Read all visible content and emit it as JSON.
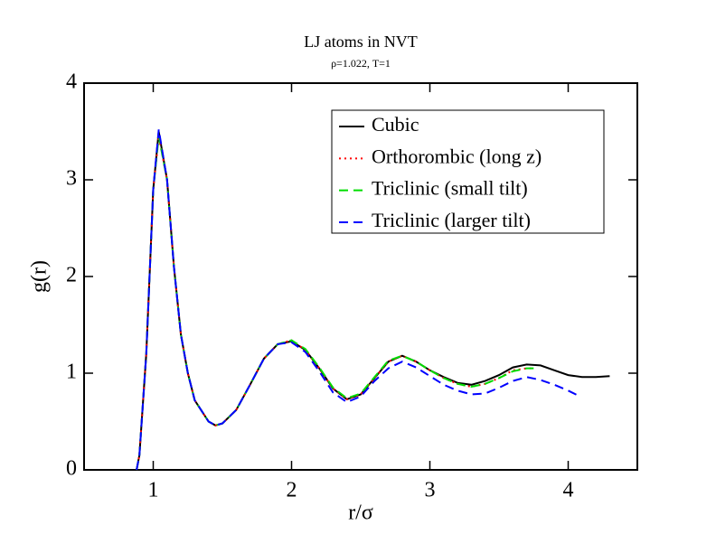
{
  "chart_data": {
    "type": "line",
    "title": "LJ atoms in NVT",
    "subtitle": "ρ=1.022, T=1",
    "xlabel": "r/σ",
    "ylabel": "g(r)",
    "xlim": [
      0.5,
      4.5
    ],
    "ylim": [
      0,
      4
    ],
    "xticks": [
      1,
      2,
      3,
      4
    ],
    "yticks": [
      0,
      1,
      2,
      3,
      4
    ],
    "grid": false,
    "legend": "upper right",
    "series": [
      {
        "name": "Cubic",
        "color": "#000000",
        "linestyle": "solid",
        "x": [
          0.88,
          0.9,
          0.95,
          1.0,
          1.04,
          1.1,
          1.15,
          1.2,
          1.25,
          1.3,
          1.4,
          1.45,
          1.5,
          1.6,
          1.7,
          1.8,
          1.9,
          2.0,
          2.1,
          2.2,
          2.3,
          2.4,
          2.5,
          2.6,
          2.7,
          2.8,
          2.9,
          3.0,
          3.1,
          3.2,
          3.3,
          3.4,
          3.5,
          3.6,
          3.7,
          3.8,
          3.9,
          4.0,
          4.1,
          4.2,
          4.3
        ],
        "values": [
          0,
          0.15,
          1.2,
          2.9,
          3.5,
          3.0,
          2.1,
          1.4,
          1.0,
          0.72,
          0.5,
          0.46,
          0.48,
          0.62,
          0.88,
          1.15,
          1.3,
          1.33,
          1.24,
          1.05,
          0.84,
          0.73,
          0.78,
          0.95,
          1.12,
          1.18,
          1.12,
          1.03,
          0.96,
          0.9,
          0.88,
          0.92,
          0.98,
          1.06,
          1.09,
          1.08,
          1.03,
          0.98,
          0.96,
          0.96,
          0.97
        ]
      },
      {
        "name": "Orthorombic (long z)",
        "color": "#ff0000",
        "linestyle": "dotted",
        "x": [
          0.88,
          0.9,
          0.95,
          1.0,
          1.04,
          1.1,
          1.15,
          1.2,
          1.25,
          1.3,
          1.4,
          1.45,
          1.5,
          1.6,
          1.7,
          1.8,
          1.9,
          2.0,
          2.1,
          2.2,
          2.3,
          2.4,
          2.5,
          2.6,
          2.7,
          2.8,
          2.9,
          3.0,
          3.1,
          3.2,
          3.3,
          3.4,
          3.5,
          3.6,
          3.7,
          3.75
        ],
        "values": [
          0,
          0.15,
          1.2,
          2.9,
          3.45,
          3.0,
          2.1,
          1.4,
          1.0,
          0.72,
          0.5,
          0.46,
          0.48,
          0.62,
          0.88,
          1.15,
          1.3,
          1.34,
          1.24,
          1.05,
          0.84,
          0.73,
          0.78,
          0.95,
          1.12,
          1.18,
          1.12,
          1.03,
          0.95,
          0.89,
          0.86,
          0.89,
          0.95,
          1.03,
          1.05,
          1.05
        ]
      },
      {
        "name": "Triclinic (small tilt)",
        "color": "#00dd00",
        "linestyle": "dashed",
        "x": [
          0.88,
          0.9,
          0.95,
          1.0,
          1.04,
          1.1,
          1.15,
          1.2,
          1.25,
          1.3,
          1.4,
          1.45,
          1.5,
          1.6,
          1.7,
          1.8,
          1.9,
          2.0,
          2.1,
          2.2,
          2.3,
          2.4,
          2.5,
          2.6,
          2.7,
          2.8,
          2.9,
          3.0,
          3.1,
          3.2,
          3.3,
          3.4,
          3.5,
          3.6,
          3.7,
          3.75
        ],
        "values": [
          0,
          0.15,
          1.2,
          2.9,
          3.45,
          3.0,
          2.1,
          1.4,
          1.0,
          0.72,
          0.5,
          0.46,
          0.48,
          0.62,
          0.88,
          1.15,
          1.3,
          1.34,
          1.25,
          1.06,
          0.85,
          0.74,
          0.79,
          0.96,
          1.13,
          1.18,
          1.12,
          1.03,
          0.95,
          0.89,
          0.86,
          0.89,
          0.95,
          1.02,
          1.05,
          1.05
        ]
      },
      {
        "name": "Triclinic (larger tilt)",
        "color": "#0000ff",
        "linestyle": "dashed",
        "x": [
          0.88,
          0.9,
          0.95,
          1.0,
          1.04,
          1.1,
          1.15,
          1.2,
          1.25,
          1.3,
          1.4,
          1.45,
          1.5,
          1.6,
          1.7,
          1.8,
          1.9,
          2.0,
          2.1,
          2.2,
          2.3,
          2.4,
          2.5,
          2.6,
          2.7,
          2.8,
          2.9,
          3.0,
          3.1,
          3.2,
          3.3,
          3.4,
          3.5,
          3.6,
          3.7,
          3.8,
          3.9,
          4.0,
          4.07
        ],
        "values": [
          0,
          0.15,
          1.2,
          2.9,
          3.52,
          3.0,
          2.1,
          1.4,
          1.0,
          0.72,
          0.5,
          0.46,
          0.48,
          0.62,
          0.88,
          1.15,
          1.3,
          1.32,
          1.22,
          1.02,
          0.8,
          0.7,
          0.76,
          0.92,
          1.05,
          1.12,
          1.06,
          0.97,
          0.88,
          0.82,
          0.78,
          0.79,
          0.85,
          0.92,
          0.96,
          0.93,
          0.88,
          0.82,
          0.77
        ]
      }
    ]
  }
}
